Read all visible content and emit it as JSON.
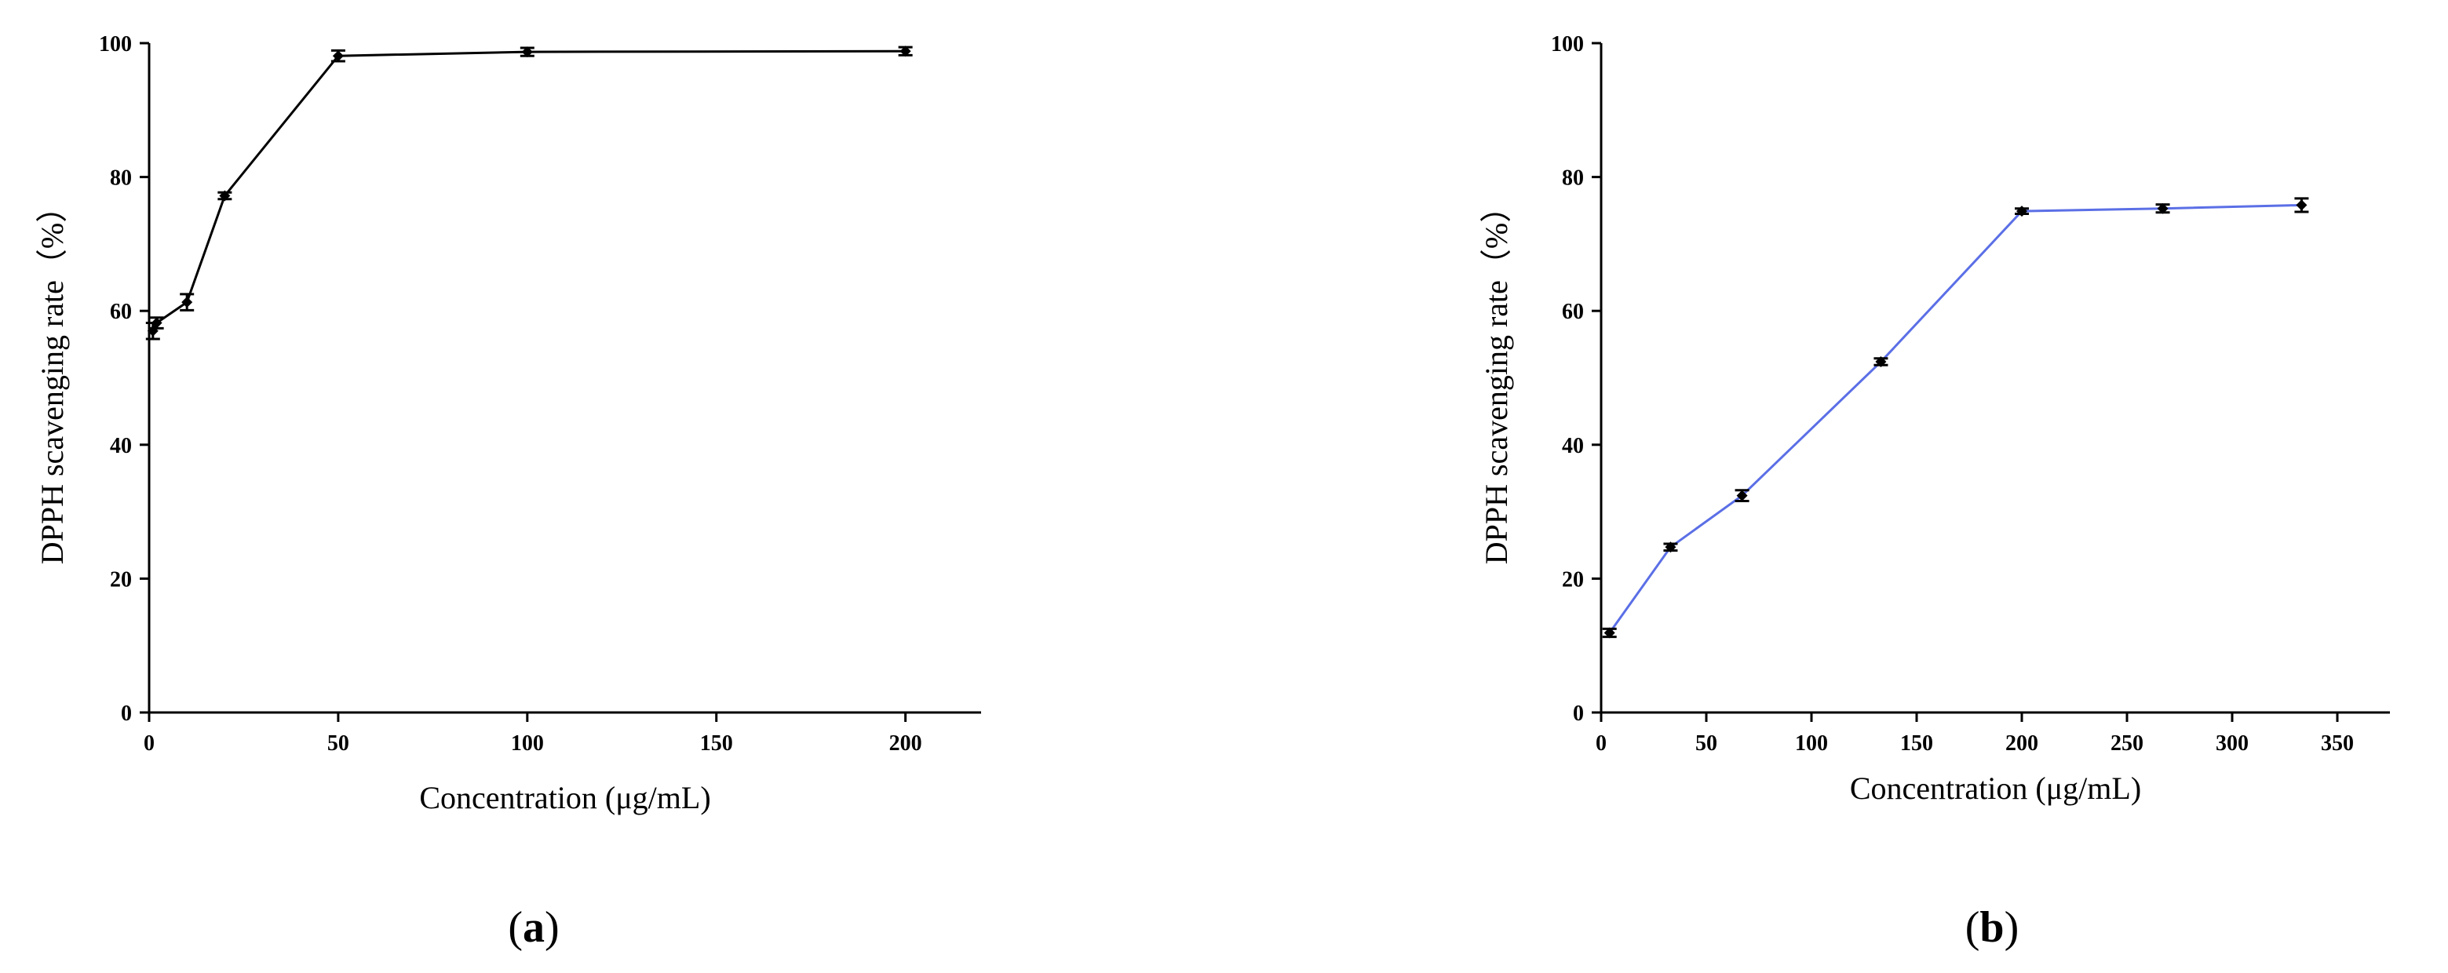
{
  "chart_data": [
    {
      "type": "line",
      "panel_label": "a",
      "xlabel": "Concentration (μg/mL)",
      "ylabel": "DPPH scavenging rate（%）",
      "xlim": [
        0,
        220
      ],
      "ylim": [
        0,
        100
      ],
      "xticks": [
        0,
        50,
        100,
        150,
        200
      ],
      "yticks": [
        0,
        20,
        40,
        60,
        80,
        100
      ],
      "grid": false,
      "legend": "none",
      "series": [
        {
          "color": "#000000",
          "x": [
            1,
            2,
            10,
            20,
            50,
            100,
            200
          ],
          "y": [
            57.0,
            58.2,
            61.3,
            77.2,
            98.1,
            98.7,
            98.8
          ],
          "err": [
            1.2,
            0.8,
            1.2,
            0.5,
            0.8,
            0.6,
            0.6
          ]
        }
      ]
    },
    {
      "type": "line",
      "panel_label": "b",
      "xlabel": "Concentration (μg/mL)",
      "ylabel": "DPPH scavenging rate（%）",
      "xlim": [
        0,
        375
      ],
      "ylim": [
        0,
        100
      ],
      "xticks": [
        0,
        50,
        100,
        150,
        200,
        250,
        300,
        350
      ],
      "yticks": [
        0,
        20,
        40,
        60,
        80,
        100
      ],
      "grid": false,
      "legend": "none",
      "series": [
        {
          "color": "#5b6fe6",
          "x": [
            4,
            33,
            67,
            133,
            200,
            267,
            333
          ],
          "y": [
            11.9,
            24.7,
            32.4,
            52.4,
            74.9,
            75.3,
            75.8
          ],
          "err": [
            0.6,
            0.5,
            0.8,
            0.5,
            0.4,
            0.6,
            1.0
          ]
        }
      ]
    }
  ]
}
